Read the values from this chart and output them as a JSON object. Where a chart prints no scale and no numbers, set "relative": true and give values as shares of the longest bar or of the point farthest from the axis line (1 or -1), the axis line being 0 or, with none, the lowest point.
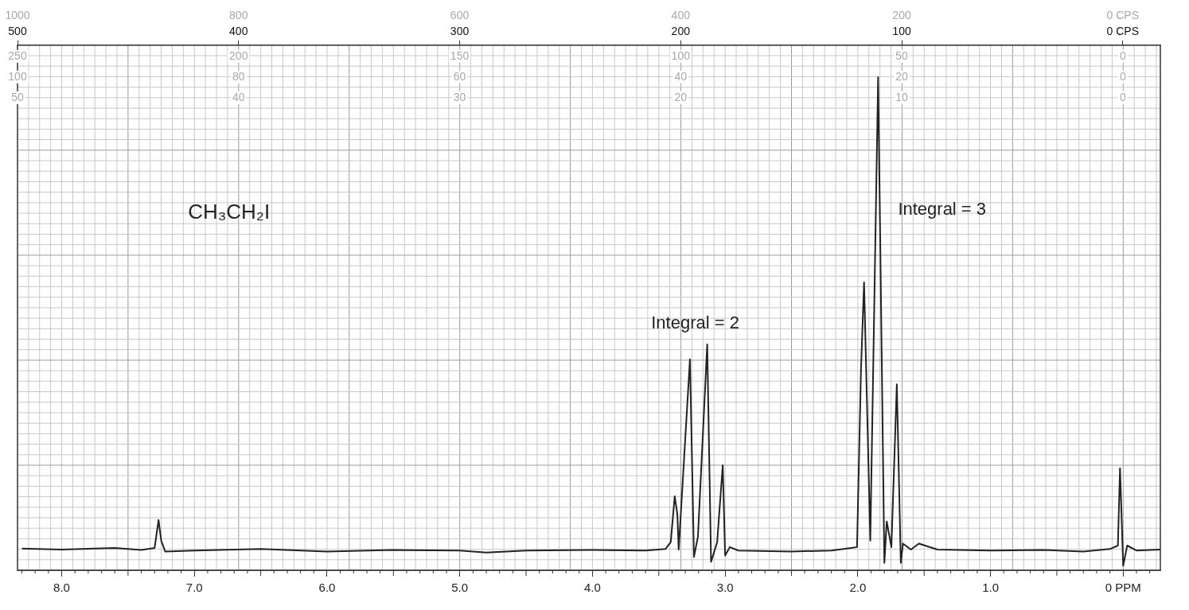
{
  "chart_data": {
    "type": "line",
    "relative": true,
    "color": "#222222",
    "marker": "none",
    "line_style": "solid",
    "grid": true,
    "legend": false,
    "tick_labels": "x",
    "annotations": [
      "CH₃CH₂I",
      "Integral = 2",
      "Integral = 3",
      "1000",
      "800",
      "600",
      "400",
      "200",
      "0 CPS",
      "250",
      "200",
      "150",
      "100",
      "50",
      "0",
      "100",
      "80",
      "60",
      "40",
      "20",
      "0",
      "50",
      "40",
      "30",
      "20",
      "10",
      "0"
    ],
    "xlim": [
      8.333,
      -0.28
    ],
    "xticks": [
      {
        "value": 8,
        "label": "8.0"
      },
      {
        "value": 7,
        "label": "7.0"
      },
      {
        "value": 6,
        "label": "6.0"
      },
      {
        "value": 5,
        "label": "5.0"
      },
      {
        "value": 4,
        "label": "4.0"
      },
      {
        "value": 3,
        "label": "3.0"
      },
      {
        "value": 2,
        "label": "2.0"
      },
      {
        "value": 1,
        "label": "1.0"
      },
      {
        "value": 0,
        "label": "0 PPM"
      }
    ],
    "x2lim": [
      500,
      -17
    ],
    "x2ticks": [
      500,
      400,
      300,
      200,
      100,
      {
        "value": 0,
        "label": "0 CPS"
      }
    ],
    "x": [
      8.3,
      8.0,
      7.6,
      7.4,
      7.3,
      7.27,
      7.25,
      7.22,
      7.0,
      6.5,
      6.0,
      5.5,
      5.0,
      4.8,
      4.5,
      4.0,
      3.6,
      3.45,
      3.41,
      3.38,
      3.36,
      3.35,
      3.265,
      3.235,
      3.205,
      3.135,
      3.106,
      3.06,
      3.018,
      3.0,
      2.965,
      2.9,
      2.5,
      2.2,
      2.05,
      2.006,
      1.976,
      1.953,
      1.906,
      1.847,
      1.8,
      1.782,
      1.747,
      1.706,
      1.676,
      1.66,
      1.6,
      1.54,
      1.4,
      1.0,
      0.6,
      0.3,
      0.1,
      0.04,
      0.024,
      0.0,
      -0.03,
      -0.1,
      -0.28
    ],
    "values": [
      0.044,
      0.042,
      0.045,
      0.041,
      0.045,
      0.102,
      0.06,
      0.038,
      0.04,
      0.043,
      0.038,
      0.041,
      0.04,
      0.036,
      0.04,
      0.041,
      0.04,
      0.043,
      0.057,
      0.15,
      0.113,
      0.042,
      0.428,
      0.027,
      0.068,
      0.458,
      0.017,
      0.057,
      0.213,
      0.03,
      0.047,
      0.04,
      0.038,
      0.04,
      0.045,
      0.047,
      0.407,
      0.584,
      0.06,
      1.0,
      0.015,
      0.099,
      0.047,
      0.377,
      0.015,
      0.054,
      0.042,
      0.054,
      0.042,
      0.04,
      0.041,
      0.038,
      0.043,
      0.05,
      0.207,
      0.009,
      0.05,
      0.04,
      0.042
    ]
  }
}
